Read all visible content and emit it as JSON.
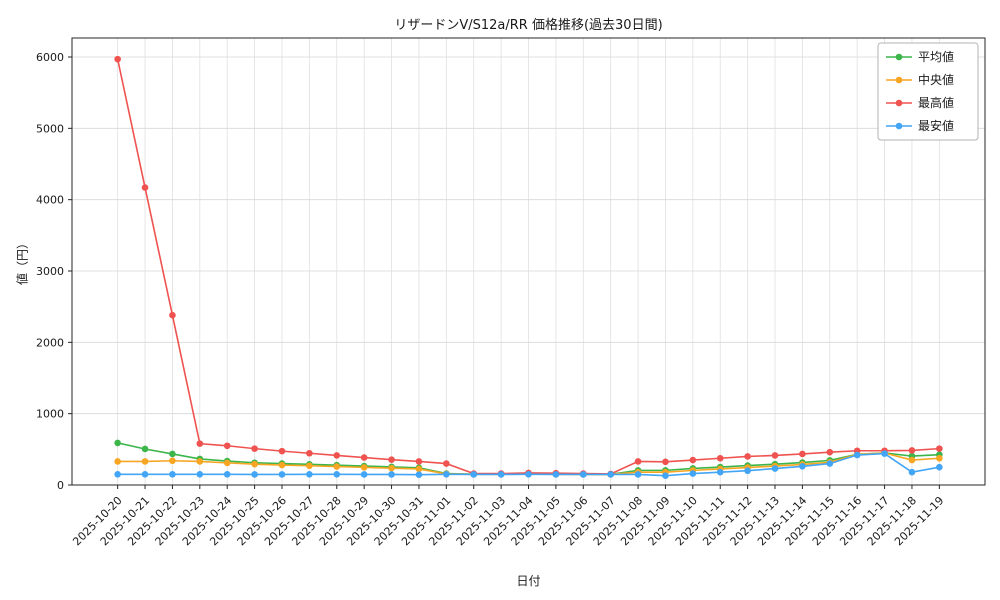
{
  "chart_data": {
    "type": "line",
    "title": "リザードンV/S12a/RR 価格推移(過去30日間)",
    "xlabel": "日付",
    "ylabel": "値（円）",
    "ylim": [
      0,
      6000
    ],
    "yticks": [
      0,
      1000,
      2000,
      3000,
      4000,
      5000,
      6000
    ],
    "grid": true,
    "legend_position": "upper right",
    "categories": [
      "2025-10-20",
      "2025-10-21",
      "2025-10-22",
      "2025-10-23",
      "2025-10-24",
      "2025-10-25",
      "2025-10-26",
      "2025-10-27",
      "2025-10-28",
      "2025-10-29",
      "2025-10-30",
      "2025-10-31",
      "2025-11-01",
      "2025-11-02",
      "2025-11-03",
      "2025-11-04",
      "2025-11-05",
      "2025-11-06",
      "2025-11-07",
      "2025-11-08",
      "2025-11-09",
      "2025-11-10",
      "2025-11-11",
      "2025-11-12",
      "2025-11-13",
      "2025-11-14",
      "2025-11-15",
      "2025-11-16",
      "2025-11-17",
      "2025-11-18",
      "2025-11-19"
    ],
    "series": [
      {
        "name": "平均値",
        "color": "#3cb54a",
        "values": [
          590,
          505,
          435,
          365,
          335,
          312,
          300,
          290,
          278,
          266,
          254,
          242,
          160,
          152,
          152,
          156,
          152,
          150,
          150,
          205,
          205,
          232,
          252,
          272,
          292,
          315,
          345,
          430,
          450,
          405,
          425
        ]
      },
      {
        "name": "中央値",
        "color": "#f6a623",
        "values": [
          330,
          330,
          340,
          330,
          310,
          292,
          280,
          270,
          258,
          247,
          236,
          225,
          155,
          150,
          150,
          154,
          150,
          148,
          148,
          180,
          180,
          205,
          225,
          245,
          265,
          288,
          318,
          428,
          448,
          350,
          375
        ]
      },
      {
        "name": "最高値",
        "color": "#ef5350",
        "values": [
          5970,
          4170,
          2380,
          580,
          550,
          510,
          475,
          445,
          415,
          385,
          355,
          330,
          300,
          160,
          160,
          170,
          165,
          160,
          155,
          330,
          325,
          350,
          375,
          400,
          415,
          435,
          460,
          480,
          480,
          485,
          510
        ]
      },
      {
        "name": "最安値",
        "color": "#42a5f5",
        "values": [
          150,
          150,
          150,
          150,
          150,
          148,
          148,
          150,
          150,
          148,
          148,
          145,
          150,
          148,
          148,
          150,
          148,
          148,
          148,
          148,
          130,
          160,
          180,
          200,
          230,
          262,
          300,
          420,
          440,
          180,
          250
        ]
      }
    ]
  }
}
